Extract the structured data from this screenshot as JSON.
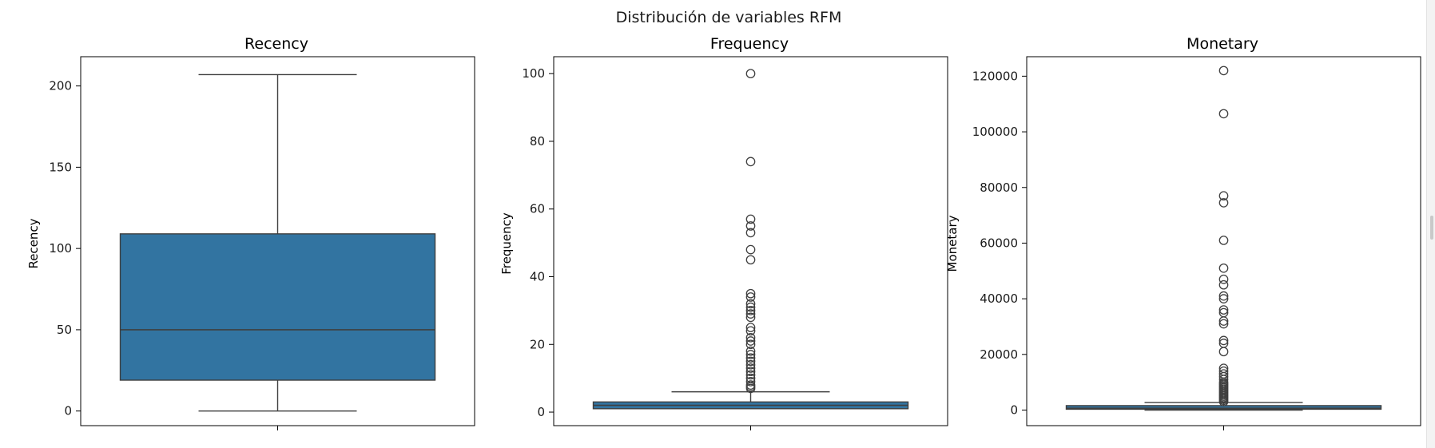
{
  "suptitle": "Distribución de variables RFM",
  "colors": {
    "box_fill": "#3274a1",
    "line": "#3f3f3f",
    "axis": "#000000"
  },
  "chart_data": [
    {
      "type": "box",
      "title": "Recency",
      "ylabel": "Recency",
      "ylim": [
        -9,
        218
      ],
      "yticks": [
        0,
        50,
        100,
        150,
        200
      ],
      "box": {
        "whislo": 0,
        "q1": 19,
        "med": 50,
        "q3": 109,
        "whishi": 207
      },
      "fliers": []
    },
    {
      "type": "box",
      "title": "Frequency",
      "ylabel": "Frequency",
      "ylim": [
        -4,
        105
      ],
      "yticks": [
        0,
        20,
        40,
        60,
        80,
        100
      ],
      "box": {
        "whislo": 1,
        "q1": 1,
        "med": 2,
        "q3": 3,
        "whishi": 6
      },
      "fliers": [
        7,
        7.5,
        8,
        9,
        10,
        11,
        12,
        13,
        14,
        15,
        16,
        17,
        18,
        20,
        21,
        22,
        24,
        25,
        28,
        29,
        30,
        31,
        32,
        34,
        35,
        45,
        48,
        53,
        55,
        57,
        74,
        100
      ]
    },
    {
      "type": "box",
      "title": "Monetary",
      "ylabel": "Monetary",
      "ylim": [
        -5600,
        127000
      ],
      "yticks": [
        0,
        20000,
        40000,
        60000,
        80000,
        100000,
        120000
      ],
      "box": {
        "whislo": 0,
        "q1": 300,
        "med": 650,
        "q3": 1600,
        "whishi": 2700
      },
      "fliers": [
        3000,
        3500,
        4000,
        4500,
        5000,
        5500,
        6000,
        6500,
        7000,
        7500,
        8000,
        8500,
        9000,
        9500,
        10000,
        11000,
        12000,
        13000,
        14000,
        15000,
        21000,
        24000,
        25000,
        31000,
        32000,
        35000,
        36000,
        40000,
        41000,
        45000,
        47000,
        51000,
        61000,
        74500,
        77000,
        106500,
        122000
      ]
    }
  ]
}
